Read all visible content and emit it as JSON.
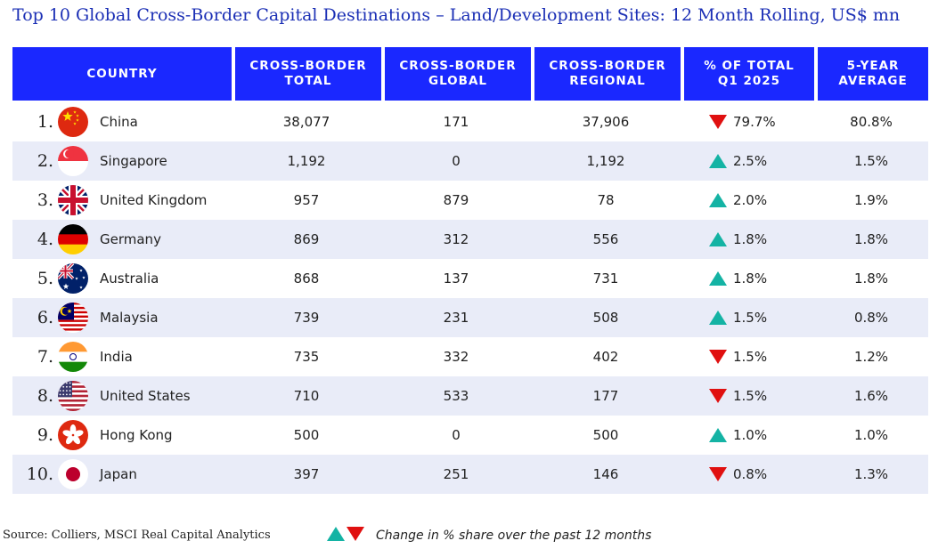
{
  "title": "Top 10 Global Cross-Border Capital Destinations – Land/Development Sites: 12 Month Rolling, US$ mn",
  "columns": {
    "country": "COUNTRY",
    "total": [
      "CROSS-BORDER",
      "TOTAL"
    ],
    "global": [
      "CROSS-BORDER",
      "GLOBAL"
    ],
    "regional": [
      "CROSS-BORDER",
      "REGIONAL"
    ],
    "share": [
      "% OF TOTAL",
      "Q1 2025"
    ],
    "avg": [
      "5-YEAR",
      "AVERAGE"
    ]
  },
  "colors": {
    "header": "#1a28ff",
    "up": "#14b3a4",
    "down": "#e01010",
    "title": "#1b2fb5"
  },
  "chart_data": {
    "type": "table",
    "title": "Top 10 Global Cross-Border Capital Destinations – Land/Development Sites: 12 Month Rolling, US$ mn",
    "rows": [
      {
        "rank": "1.",
        "country": "China",
        "flag": "china-flag-icon",
        "total": "38,077",
        "global": "171",
        "regional": "37,906",
        "share": "79.7%",
        "trend": "down",
        "avg": "80.8%"
      },
      {
        "rank": "2.",
        "country": "Singapore",
        "flag": "singapore-flag-icon",
        "total": "1,192",
        "global": "0",
        "regional": "1,192",
        "share": "2.5%",
        "trend": "up",
        "avg": "1.5%"
      },
      {
        "rank": "3.",
        "country": "United Kingdom",
        "flag": "uk-flag-icon",
        "total": "957",
        "global": "879",
        "regional": "78",
        "share": "2.0%",
        "trend": "up",
        "avg": "1.9%"
      },
      {
        "rank": "4.",
        "country": "Germany",
        "flag": "germany-flag-icon",
        "total": "869",
        "global": "312",
        "regional": "556",
        "share": "1.8%",
        "trend": "up",
        "avg": "1.8%"
      },
      {
        "rank": "5.",
        "country": "Australia",
        "flag": "australia-flag-icon",
        "total": "868",
        "global": "137",
        "regional": "731",
        "share": "1.8%",
        "trend": "up",
        "avg": "1.8%"
      },
      {
        "rank": "6.",
        "country": "Malaysia",
        "flag": "malaysia-flag-icon",
        "total": "739",
        "global": "231",
        "regional": "508",
        "share": "1.5%",
        "trend": "up",
        "avg": "0.8%"
      },
      {
        "rank": "7.",
        "country": "India",
        "flag": "india-flag-icon",
        "total": "735",
        "global": "332",
        "regional": "402",
        "share": "1.5%",
        "trend": "down",
        "avg": "1.2%"
      },
      {
        "rank": "8.",
        "country": "United States",
        "flag": "usa-flag-icon",
        "total": "710",
        "global": "533",
        "regional": "177",
        "share": "1.5%",
        "trend": "down",
        "avg": "1.6%"
      },
      {
        "rank": "9.",
        "country": "Hong Kong",
        "flag": "hong-kong-flag-icon",
        "total": "500",
        "global": "0",
        "regional": "500",
        "share": "1.0%",
        "trend": "up",
        "avg": "1.0%"
      },
      {
        "rank": "10.",
        "country": "Japan",
        "flag": "japan-flag-icon",
        "total": "397",
        "global": "251",
        "regional": "146",
        "share": "0.8%",
        "trend": "down",
        "avg": "1.3%"
      }
    ]
  },
  "footer": {
    "source": "Source: Colliers, MSCI Real Capital Analytics",
    "legend": "Change in % share over the past 12 months"
  }
}
